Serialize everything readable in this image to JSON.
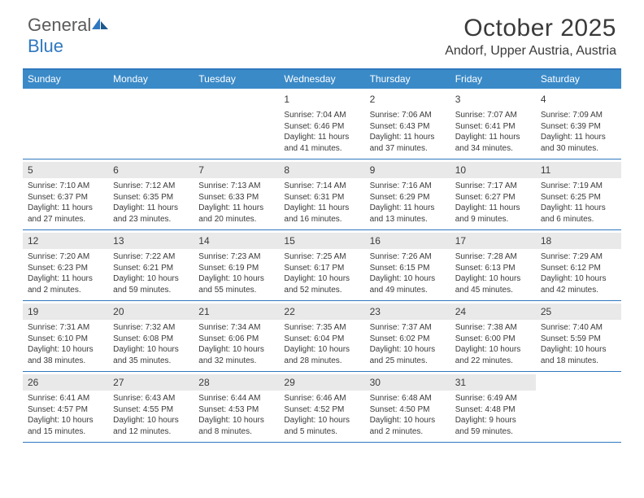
{
  "logo": {
    "general": "General",
    "blue": "Blue"
  },
  "title": "October 2025",
  "location": "Andorf, Upper Austria, Austria",
  "colors": {
    "header_bg": "#3a8ac8",
    "rule": "#2f78bf",
    "daynum_bg": "#e9e9e9",
    "text": "#3a3a3a",
    "white": "#ffffff"
  },
  "day_names": [
    "Sunday",
    "Monday",
    "Tuesday",
    "Wednesday",
    "Thursday",
    "Friday",
    "Saturday"
  ],
  "weeks": [
    [
      null,
      null,
      null,
      {
        "n": "1",
        "sr": "7:04 AM",
        "ss": "6:46 PM",
        "dl": "11 hours and 41 minutes."
      },
      {
        "n": "2",
        "sr": "7:06 AM",
        "ss": "6:43 PM",
        "dl": "11 hours and 37 minutes."
      },
      {
        "n": "3",
        "sr": "7:07 AM",
        "ss": "6:41 PM",
        "dl": "11 hours and 34 minutes."
      },
      {
        "n": "4",
        "sr": "7:09 AM",
        "ss": "6:39 PM",
        "dl": "11 hours and 30 minutes."
      }
    ],
    [
      {
        "n": "5",
        "sr": "7:10 AM",
        "ss": "6:37 PM",
        "dl": "11 hours and 27 minutes."
      },
      {
        "n": "6",
        "sr": "7:12 AM",
        "ss": "6:35 PM",
        "dl": "11 hours and 23 minutes."
      },
      {
        "n": "7",
        "sr": "7:13 AM",
        "ss": "6:33 PM",
        "dl": "11 hours and 20 minutes."
      },
      {
        "n": "8",
        "sr": "7:14 AM",
        "ss": "6:31 PM",
        "dl": "11 hours and 16 minutes."
      },
      {
        "n": "9",
        "sr": "7:16 AM",
        "ss": "6:29 PM",
        "dl": "11 hours and 13 minutes."
      },
      {
        "n": "10",
        "sr": "7:17 AM",
        "ss": "6:27 PM",
        "dl": "11 hours and 9 minutes."
      },
      {
        "n": "11",
        "sr": "7:19 AM",
        "ss": "6:25 PM",
        "dl": "11 hours and 6 minutes."
      }
    ],
    [
      {
        "n": "12",
        "sr": "7:20 AM",
        "ss": "6:23 PM",
        "dl": "11 hours and 2 minutes."
      },
      {
        "n": "13",
        "sr": "7:22 AM",
        "ss": "6:21 PM",
        "dl": "10 hours and 59 minutes."
      },
      {
        "n": "14",
        "sr": "7:23 AM",
        "ss": "6:19 PM",
        "dl": "10 hours and 55 minutes."
      },
      {
        "n": "15",
        "sr": "7:25 AM",
        "ss": "6:17 PM",
        "dl": "10 hours and 52 minutes."
      },
      {
        "n": "16",
        "sr": "7:26 AM",
        "ss": "6:15 PM",
        "dl": "10 hours and 49 minutes."
      },
      {
        "n": "17",
        "sr": "7:28 AM",
        "ss": "6:13 PM",
        "dl": "10 hours and 45 minutes."
      },
      {
        "n": "18",
        "sr": "7:29 AM",
        "ss": "6:12 PM",
        "dl": "10 hours and 42 minutes."
      }
    ],
    [
      {
        "n": "19",
        "sr": "7:31 AM",
        "ss": "6:10 PM",
        "dl": "10 hours and 38 minutes."
      },
      {
        "n": "20",
        "sr": "7:32 AM",
        "ss": "6:08 PM",
        "dl": "10 hours and 35 minutes."
      },
      {
        "n": "21",
        "sr": "7:34 AM",
        "ss": "6:06 PM",
        "dl": "10 hours and 32 minutes."
      },
      {
        "n": "22",
        "sr": "7:35 AM",
        "ss": "6:04 PM",
        "dl": "10 hours and 28 minutes."
      },
      {
        "n": "23",
        "sr": "7:37 AM",
        "ss": "6:02 PM",
        "dl": "10 hours and 25 minutes."
      },
      {
        "n": "24",
        "sr": "7:38 AM",
        "ss": "6:00 PM",
        "dl": "10 hours and 22 minutes."
      },
      {
        "n": "25",
        "sr": "7:40 AM",
        "ss": "5:59 PM",
        "dl": "10 hours and 18 minutes."
      }
    ],
    [
      {
        "n": "26",
        "sr": "6:41 AM",
        "ss": "4:57 PM",
        "dl": "10 hours and 15 minutes."
      },
      {
        "n": "27",
        "sr": "6:43 AM",
        "ss": "4:55 PM",
        "dl": "10 hours and 12 minutes."
      },
      {
        "n": "28",
        "sr": "6:44 AM",
        "ss": "4:53 PM",
        "dl": "10 hours and 8 minutes."
      },
      {
        "n": "29",
        "sr": "6:46 AM",
        "ss": "4:52 PM",
        "dl": "10 hours and 5 minutes."
      },
      {
        "n": "30",
        "sr": "6:48 AM",
        "ss": "4:50 PM",
        "dl": "10 hours and 2 minutes."
      },
      {
        "n": "31",
        "sr": "6:49 AM",
        "ss": "4:48 PM",
        "dl": "9 hours and 59 minutes."
      },
      null
    ]
  ],
  "labels": {
    "sunrise": "Sunrise: ",
    "sunset": "Sunset: ",
    "daylight": "Daylight: "
  }
}
